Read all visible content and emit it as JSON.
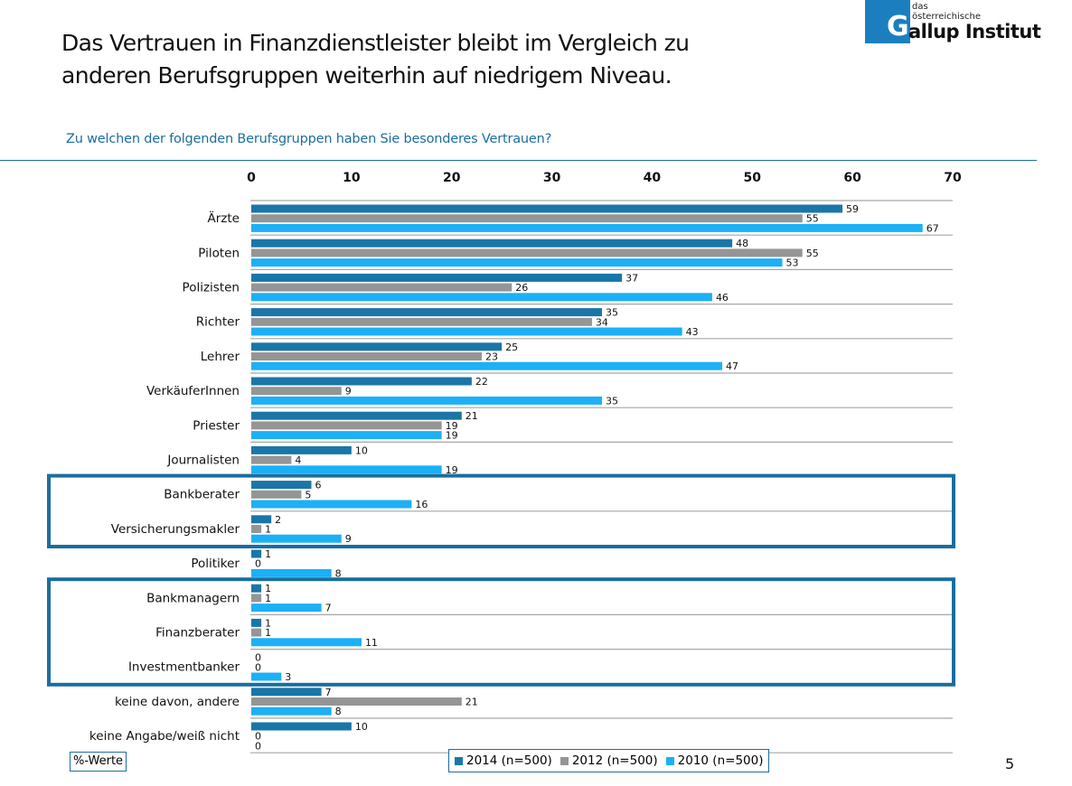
{
  "title_line1": "Das Vertrauen in Finanzdienstleister bleibt im Vergleich zu",
  "title_line2": "anderen Berufsgruppen weiterhin auf niedrigem Niveau.",
  "logo": {
    "small1": "das",
    "small2": "österreichische",
    "letter": "G",
    "rest": "allup Institut",
    "color": "#1b7fbf"
  },
  "subtitle": "Zu welchen der folgenden Berufsgruppen haben Sie besonderes Vertrauen?",
  "page_number": "5",
  "unit_label": "%-Werte",
  "highlight_groups": [
    {
      "from": "Bankberater",
      "to": "Versicherungsmakler"
    },
    {
      "from": "Bankmanagern",
      "to": "Investmentbanker"
    }
  ],
  "chart_data": {
    "type": "bar",
    "orientation": "horizontal",
    "title": "Zu welchen der folgenden Berufsgruppen haben Sie besonderes Vertrauen?",
    "xlabel": "%-Werte",
    "ylabel": "",
    "xlim": [
      0,
      70
    ],
    "xticks": [
      0,
      10,
      20,
      30,
      40,
      50,
      60,
      70
    ],
    "x_axis_position": "top",
    "grid": false,
    "legend_position": "bottom",
    "categories": [
      "Ärzte",
      "Piloten",
      "Polizisten",
      "Richter",
      "Lehrer",
      "VerkäuferInnen",
      "Priester",
      "Journalisten",
      "Bankberater",
      "Versicherungsmakler",
      "Politiker",
      "Bankmanagern",
      "Finanzberater",
      "Investmentbanker",
      "keine davon, andere",
      "keine Angabe/weiß nicht"
    ],
    "series": [
      {
        "name": "2014 (n=500)",
        "color": "#1a76a8",
        "values": [
          59,
          48,
          37,
          35,
          25,
          22,
          21,
          10,
          6,
          2,
          1,
          1,
          1,
          0,
          7,
          10
        ]
      },
      {
        "name": "2012 (n=500)",
        "color": "#959595",
        "values": [
          55,
          55,
          26,
          34,
          23,
          9,
          19,
          4,
          5,
          1,
          0,
          1,
          1,
          0,
          21,
          0
        ]
      },
      {
        "name": "2010 (n=500)",
        "color": "#1cb0f6",
        "values": [
          67,
          53,
          46,
          43,
          47,
          35,
          19,
          19,
          16,
          9,
          8,
          7,
          11,
          3,
          8,
          0
        ]
      }
    ]
  }
}
